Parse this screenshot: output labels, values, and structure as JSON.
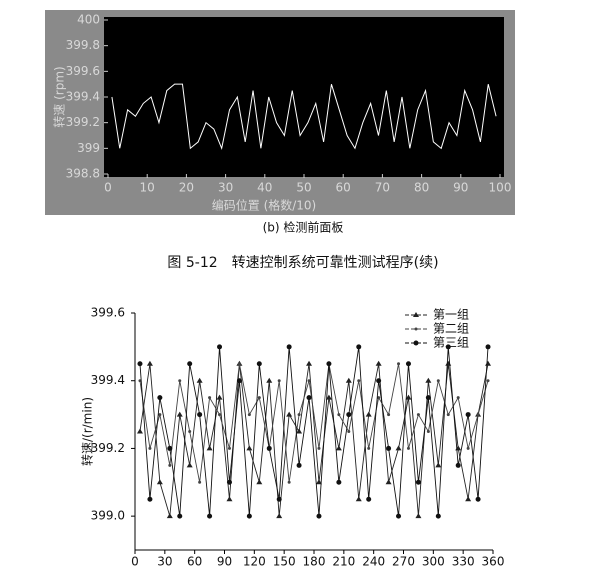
{
  "figure_title": "图 5-12　转速控制系统可靠性测试程序(续)",
  "chart_data": [
    {
      "type": "line",
      "caption": "(b) 检测前面板",
      "x_label": "编码位置 (格数/10)",
      "y_label": "转速 (rpm)",
      "background": "#000000",
      "panel": "#8a8a8a",
      "x": [
        1,
        3,
        5,
        7,
        9,
        11,
        13,
        15,
        17,
        19,
        21,
        23,
        25,
        27,
        29,
        31,
        33,
        35,
        37,
        39,
        41,
        43,
        45,
        47,
        49,
        51,
        53,
        55,
        57,
        59,
        61,
        63,
        65,
        67,
        69,
        71,
        73,
        75,
        77,
        79,
        81,
        83,
        85,
        87,
        89,
        91,
        93,
        95,
        97,
        99
      ],
      "series": [
        {
          "color": "#ffffff",
          "values": [
            399.4,
            399.0,
            399.3,
            399.25,
            399.35,
            399.4,
            399.2,
            399.45,
            399.5,
            399.5,
            399.0,
            399.05,
            399.2,
            399.15,
            399.0,
            399.3,
            399.4,
            399.05,
            399.45,
            399.0,
            399.4,
            399.2,
            399.1,
            399.45,
            399.1,
            399.2,
            399.35,
            399.05,
            399.5,
            399.3,
            399.1,
            399.0,
            399.2,
            399.35,
            399.1,
            399.45,
            399.05,
            399.4,
            399.0,
            399.3,
            399.45,
            399.05,
            399.0,
            399.2,
            399.1,
            399.45,
            399.3,
            399.05,
            399.5,
            399.25
          ]
        }
      ],
      "xlim": [
        0,
        100
      ],
      "xticks": [
        0,
        10,
        20,
        30,
        40,
        50,
        60,
        70,
        80,
        90,
        100
      ],
      "ylim": [
        398.8,
        400
      ],
      "yticks": [
        398.8,
        399,
        399.2,
        399.4,
        399.6,
        399.8,
        400
      ]
    },
    {
      "type": "line",
      "y_label": "转速/(r/min)",
      "legend": "top-right",
      "x": [
        5,
        15,
        25,
        35,
        45,
        55,
        65,
        75,
        85,
        95,
        105,
        115,
        125,
        135,
        145,
        155,
        165,
        175,
        185,
        195,
        205,
        215,
        225,
        235,
        245,
        255,
        265,
        275,
        285,
        295,
        305,
        315,
        325,
        335,
        345,
        355
      ],
      "series": [
        {
          "name": "第一组",
          "color": "#222222",
          "marker": "triangle",
          "values": [
            399.25,
            399.45,
            399.1,
            399.0,
            399.3,
            399.15,
            399.4,
            399.2,
            399.35,
            399.05,
            399.45,
            399.2,
            399.1,
            399.4,
            399.0,
            399.3,
            399.25,
            399.45,
            399.1,
            399.35,
            399.2,
            399.4,
            399.05,
            399.3,
            399.45,
            399.1,
            399.2,
            399.35,
            399.0,
            399.4,
            399.15,
            399.45,
            399.2,
            399.05,
            399.3,
            399.45
          ]
        },
        {
          "name": "第二组",
          "color": "#444444",
          "marker": "dot",
          "values": [
            399.4,
            399.2,
            399.3,
            399.15,
            399.4,
            399.25,
            399.1,
            399.35,
            399.3,
            399.2,
            399.45,
            399.3,
            399.35,
            399.2,
            399.4,
            399.1,
            399.3,
            399.4,
            399.2,
            399.45,
            399.3,
            399.25,
            399.4,
            399.2,
            399.35,
            399.3,
            399.45,
            399.2,
            399.3,
            399.25,
            399.4,
            399.3,
            399.35,
            399.2,
            399.3,
            399.4
          ]
        },
        {
          "name": "第三组",
          "color": "#111111",
          "marker": "circle",
          "values": [
            399.45,
            399.05,
            399.35,
            399.2,
            399.0,
            399.45,
            399.3,
            399.0,
            399.5,
            399.1,
            399.4,
            399.0,
            399.45,
            399.2,
            399.05,
            399.5,
            399.15,
            399.35,
            399.0,
            399.45,
            399.1,
            399.3,
            399.5,
            399.05,
            399.4,
            399.2,
            399.0,
            399.45,
            399.1,
            399.35,
            399.0,
            399.5,
            399.15,
            399.3,
            399.05,
            399.5
          ]
        }
      ],
      "xlim": [
        0,
        360
      ],
      "xticks": [
        0,
        30,
        60,
        90,
        120,
        150,
        180,
        210,
        240,
        270,
        300,
        330,
        360
      ],
      "ylim": [
        398.9,
        399.6
      ],
      "yticks": [
        {
          "value": 399,
          "label": "399.0"
        },
        399.2,
        399.4,
        399.6
      ]
    }
  ]
}
